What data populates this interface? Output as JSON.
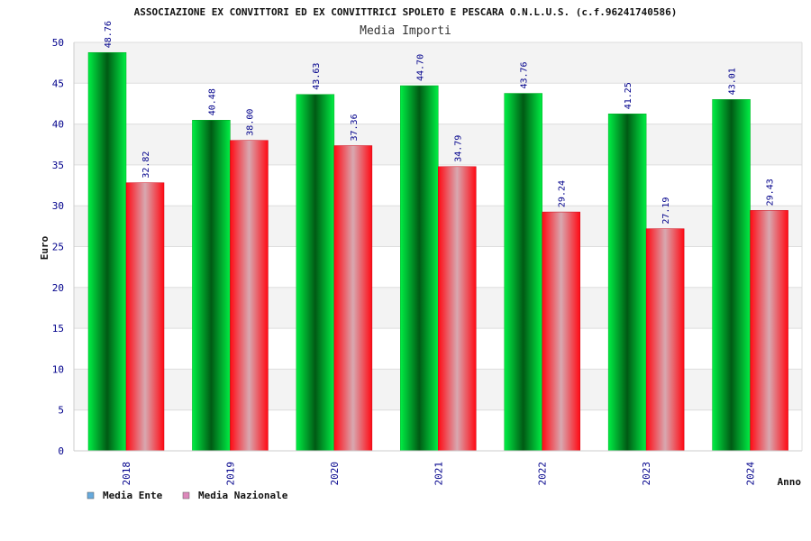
{
  "chart_data": {
    "type": "bar",
    "title": "ASSOCIAZIONE EX CONVITTORI ED EX CONVITTRICI SPOLETO E PESCARA O.N.L.U.S. (c.f.96241740586)",
    "subtitle": "Media Importi",
    "xlabel": "Anno",
    "ylabel": "Euro",
    "ylim": [
      0,
      50
    ],
    "yticks": [
      0,
      5,
      10,
      15,
      20,
      25,
      30,
      35,
      40,
      45,
      50
    ],
    "categories": [
      "2018",
      "2019",
      "2020",
      "2021",
      "2022",
      "2023",
      "2024"
    ],
    "series": [
      {
        "name": "Media Ente",
        "values": [
          48.76,
          40.48,
          43.63,
          44.7,
          43.76,
          41.25,
          43.01
        ],
        "labels": [
          "48.76",
          "40.48",
          "43.63",
          "44.70",
          "43.76",
          "41.25",
          "43.01"
        ],
        "color": "#00cc33",
        "legend_color": "#66aadd"
      },
      {
        "name": "Media Nazionale",
        "values": [
          32.82,
          38.0,
          37.36,
          34.79,
          29.24,
          27.19,
          29.43
        ],
        "labels": [
          "32.82",
          "38.00",
          "37.36",
          "34.79",
          "29.24",
          "27.19",
          "29.43"
        ],
        "color": "#ff1a2a",
        "legend_color": "#dd88bb"
      }
    ],
    "grid": true,
    "legend": "bottom-left"
  }
}
